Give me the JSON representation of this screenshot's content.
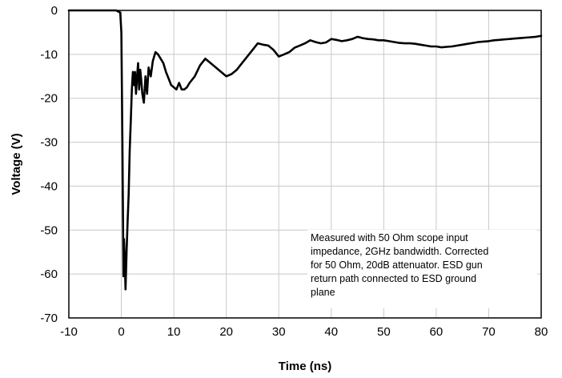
{
  "chart_data": {
    "type": "line",
    "xlabel": "Time (ns)",
    "ylabel": "Voltage (V)",
    "xlim": [
      -10,
      80
    ],
    "ylim": [
      -70,
      0
    ],
    "x_ticks": [
      "-10",
      "0",
      "10",
      "20",
      "30",
      "40",
      "50",
      "60",
      "70",
      "80"
    ],
    "y_ticks": [
      "0",
      "-10",
      "-20",
      "-30",
      "-40",
      "-50",
      "-60",
      "-70"
    ],
    "grid": true,
    "annotation": [
      "Measured with 50 Ohm scope input",
      "impedance, 2GHz bandwidth.  Corrected",
      "for 50 Ohm, 20dB attenuator. ESD gun",
      "return path connected to ESD ground",
      "plane"
    ],
    "series": [
      {
        "color": "#000000",
        "x": [
          -10,
          -5,
          -1,
          -0.2,
          0,
          0.2,
          0.4,
          0.5,
          0.6,
          0.8,
          1.0,
          1.2,
          1.4,
          1.6,
          1.8,
          2.0,
          2.2,
          2.4,
          2.6,
          2.8,
          3.0,
          3.2,
          3.4,
          3.6,
          3.8,
          4.0,
          4.3,
          4.6,
          4.9,
          5.2,
          5.6,
          6.0,
          6.5,
          7.0,
          7.5,
          8.0,
          8.5,
          9.0,
          9.5,
          10.0,
          10.5,
          11.0,
          11.5,
          12.0,
          12.5,
          13.0,
          14.0,
          15.0,
          16.0,
          17.0,
          18.0,
          19.0,
          20.0,
          21.0,
          22.0,
          23.0,
          24.0,
          25.0,
          26.0,
          27.0,
          28.0,
          29.0,
          30.0,
          31.0,
          32.0,
          33.0,
          34.0,
          35.0,
          36.0,
          37.0,
          38.0,
          39.0,
          40.0,
          41.0,
          42.0,
          43.0,
          44.0,
          45.0,
          46.0,
          47.0,
          48.0,
          49.0,
          50.0,
          51.0,
          52.0,
          53.0,
          54.0,
          55.0,
          56.0,
          57.0,
          58.0,
          59.0,
          60.0,
          61.0,
          62.0,
          63.0,
          64.0,
          65.0,
          66.0,
          67.0,
          68.0,
          69.0,
          70.0,
          71.0,
          72.0,
          73.0,
          74.0,
          75.0,
          76.0,
          77.0,
          78.0,
          79.0,
          80.0
        ],
        "y": [
          0,
          0,
          0,
          -0.5,
          -5,
          -30,
          -60.5,
          -52,
          -55,
          -63.5,
          -55,
          -48,
          -42,
          -32,
          -25,
          -18,
          -14,
          -17,
          -14,
          -19,
          -15,
          -12,
          -18,
          -13.5,
          -16,
          -19,
          -21,
          -15,
          -19,
          -13,
          -15,
          -11.5,
          -9.5,
          -10,
          -11,
          -12,
          -14,
          -15.5,
          -17,
          -17.5,
          -18,
          -16.5,
          -18,
          -18,
          -17.5,
          -16.5,
          -15,
          -12.5,
          -11,
          -12,
          -13,
          -14,
          -15,
          -14.5,
          -13.5,
          -12,
          -10.5,
          -9,
          -7.5,
          -7.8,
          -8,
          -9,
          -10.5,
          -10,
          -9.5,
          -8.5,
          -8,
          -7.5,
          -6.8,
          -7.2,
          -7.5,
          -7.3,
          -6.5,
          -6.7,
          -7,
          -6.8,
          -6.5,
          -6,
          -6.3,
          -6.5,
          -6.6,
          -6.8,
          -6.8,
          -7,
          -7.2,
          -7.4,
          -7.5,
          -7.5,
          -7.6,
          -7.8,
          -8,
          -8.2,
          -8.2,
          -8.4,
          -8.3,
          -8.2,
          -8,
          -7.8,
          -7.6,
          -7.4,
          -7.2,
          -7.1,
          -7,
          -6.8,
          -6.7,
          -6.6,
          -6.5,
          -6.4,
          -6.3,
          -6.2,
          -6.1,
          -6,
          -5.8
        ]
      }
    ]
  }
}
